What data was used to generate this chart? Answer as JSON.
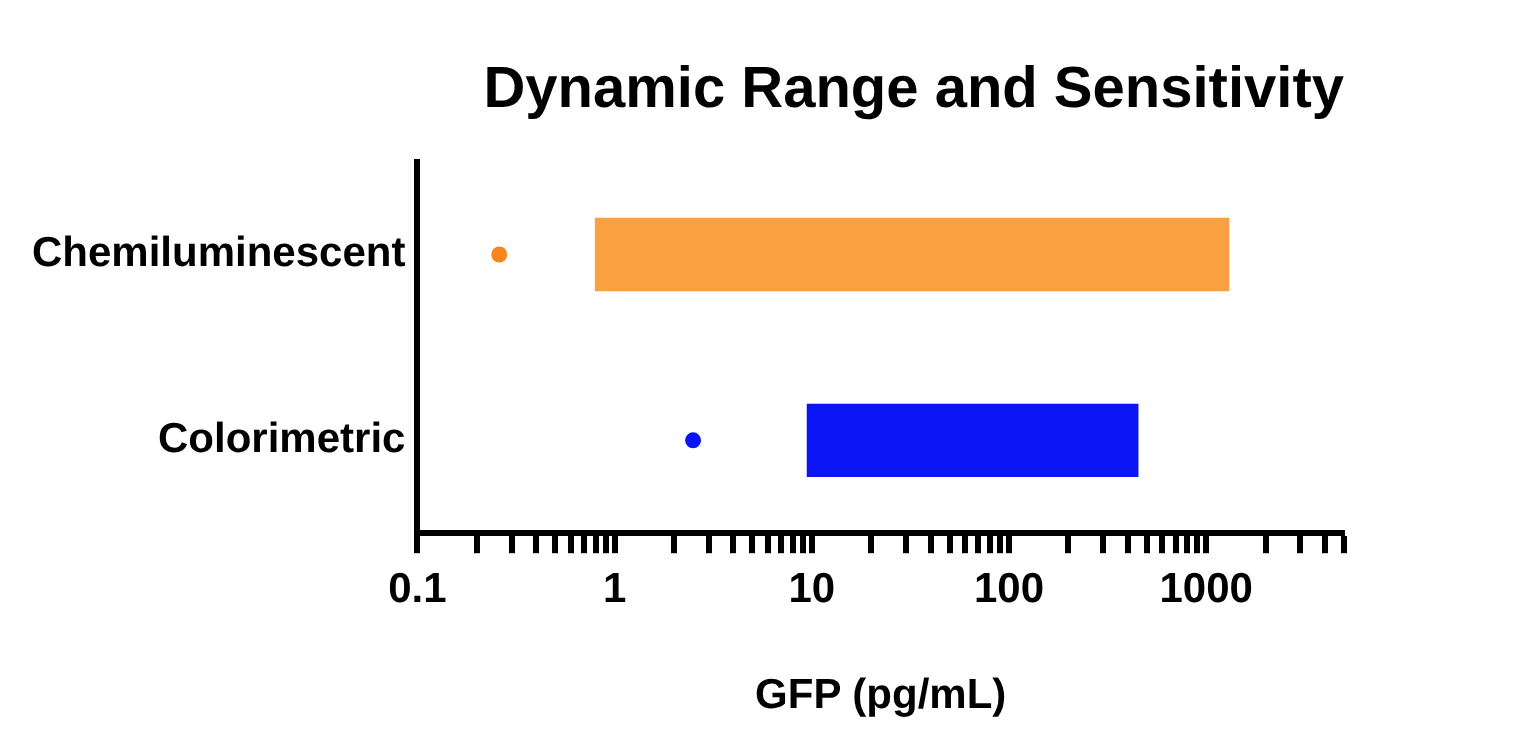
{
  "chart_data": {
    "type": "bar",
    "title": "Dynamic Range and Sensitivity",
    "xlabel": "GFP (pg/mL)",
    "orientation": "horizontal",
    "log": "x",
    "grid": false,
    "legend": false,
    "categories": [
      "Chemiluminescent",
      "Colorimetric"
    ],
    "xlim": [
      0.1,
      5000
    ],
    "xticks": [
      0.1,
      {
        "value": 0.2,
        "label": null
      },
      {
        "value": 0.3,
        "label": null
      },
      {
        "value": 0.4,
        "label": null
      },
      {
        "value": 0.5,
        "label": null
      },
      {
        "value": 0.6,
        "label": null
      },
      {
        "value": 0.7,
        "label": null
      },
      {
        "value": 0.8,
        "label": null
      },
      {
        "value": 0.9,
        "label": null
      },
      1,
      {
        "value": 2,
        "label": null
      },
      {
        "value": 3,
        "label": null
      },
      {
        "value": 4,
        "label": null
      },
      {
        "value": 5,
        "label": null
      },
      {
        "value": 6,
        "label": null
      },
      {
        "value": 7,
        "label": null
      },
      {
        "value": 8,
        "label": null
      },
      {
        "value": 9,
        "label": null
      },
      10,
      {
        "value": 20,
        "label": null
      },
      {
        "value": 30,
        "label": null
      },
      {
        "value": 40,
        "label": null
      },
      {
        "value": 50,
        "label": null
      },
      {
        "value": 60,
        "label": null
      },
      {
        "value": 70,
        "label": null
      },
      {
        "value": 80,
        "label": null
      },
      {
        "value": 90,
        "label": null
      },
      100,
      {
        "value": 200,
        "label": null
      },
      {
        "value": 300,
        "label": null
      },
      {
        "value": 400,
        "label": null
      },
      {
        "value": 500,
        "label": null
      },
      {
        "value": 600,
        "label": null
      },
      {
        "value": 700,
        "label": null
      },
      {
        "value": 800,
        "label": null
      },
      {
        "value": 900,
        "label": null
      },
      1000,
      {
        "value": 2000,
        "label": null
      },
      {
        "value": 3000,
        "label": null
      },
      {
        "value": 4000,
        "label": null
      },
      {
        "value": 5000,
        "label": null
      }
    ],
    "series": [
      {
        "colors": [
          "#fba040",
          "#0a14f5"
        ],
        "base": [
          0.8,
          9.5
        ],
        "values": [
          1299.2,
          440.5
        ]
      },
      {
        "type": "scatter",
        "marker": "circle",
        "colors": [
          "#f7861e",
          "#0a14f5"
        ],
        "values": [
          0.26,
          2.5
        ]
      }
    ]
  }
}
